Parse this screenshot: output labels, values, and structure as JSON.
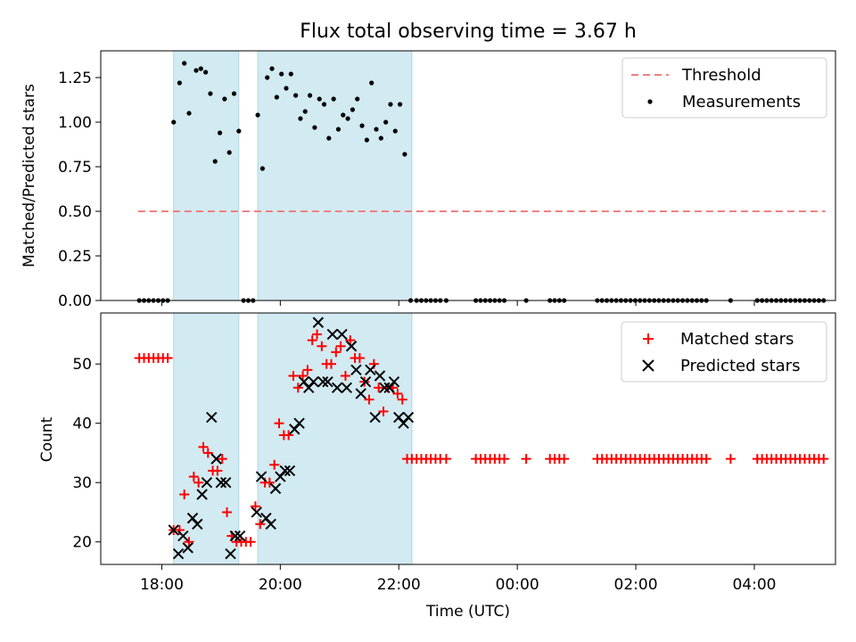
{
  "title": "Flux total observing time = 3.67 h",
  "colors": {
    "band": "#add8e6",
    "threshold": "#f08080",
    "matched": "#ff0000",
    "predicted": "#000000",
    "measurement": "#000000"
  },
  "chart_data": [
    {
      "type": "scatter",
      "panel": "top",
      "xlabel": "",
      "ylabel": "Matched/Predicted stars",
      "x_unit": "hours since 2024-01-01 00:00 UTC",
      "xlim": [
        16.97,
        29.37
      ],
      "ylim": [
        0.0,
        1.4
      ],
      "yticks": [
        0.0,
        0.25,
        0.5,
        0.75,
        1.0,
        1.25
      ],
      "ytick_labels": [
        "0.00",
        "0.25",
        "0.50",
        "0.75",
        "1.00",
        "1.25"
      ],
      "legend_position": "top-right",
      "shaded_intervals": [
        [
          18.2,
          19.3
        ],
        [
          19.62,
          22.22
        ]
      ],
      "threshold": {
        "name": "Threshold",
        "y": 0.5,
        "x": [
          17.6,
          29.2
        ],
        "style": "dashed"
      },
      "series": [
        {
          "name": "Measurements",
          "marker": "dot",
          "x": [
            17.62,
            17.7,
            17.78,
            17.86,
            17.94,
            18.02,
            18.1,
            18.2,
            18.3,
            18.38,
            18.46,
            18.58,
            18.66,
            18.74,
            18.82,
            18.9,
            18.98,
            19.06,
            19.14,
            19.22,
            19.3,
            19.38,
            19.46,
            19.54,
            19.62,
            19.7,
            19.78,
            19.86,
            19.94,
            20.02,
            20.1,
            20.18,
            20.26,
            20.34,
            20.42,
            20.5,
            20.58,
            20.66,
            20.74,
            20.82,
            20.9,
            20.98,
            21.06,
            21.14,
            21.22,
            21.3,
            21.38,
            21.46,
            21.54,
            21.62,
            21.7,
            21.78,
            21.86,
            21.94,
            22.02,
            22.1,
            22.2,
            22.3,
            22.38,
            22.46,
            22.54,
            22.62,
            22.7,
            22.8,
            23.3,
            23.38,
            23.46,
            23.54,
            23.62,
            23.7,
            23.78,
            24.15,
            24.55,
            24.63,
            24.71,
            24.79,
            25.35,
            25.43,
            25.51,
            25.59,
            25.67,
            25.75,
            25.83,
            25.91,
            25.99,
            26.07,
            26.15,
            26.23,
            26.31,
            26.39,
            26.47,
            26.55,
            26.63,
            26.71,
            26.79,
            26.87,
            26.95,
            27.03,
            27.11,
            27.19,
            27.6,
            28.05,
            28.13,
            28.21,
            28.29,
            28.37,
            28.45,
            28.53,
            28.61,
            28.69,
            28.77,
            28.85,
            28.93,
            29.01,
            29.09,
            29.17
          ],
          "y": [
            0,
            0,
            0,
            0,
            0,
            0,
            0,
            1.0,
            1.22,
            1.33,
            1.05,
            1.29,
            1.3,
            1.28,
            1.16,
            0.78,
            0.94,
            1.13,
            0.83,
            1.16,
            0.95,
            0,
            0,
            0,
            1.04,
            0.74,
            1.25,
            1.3,
            1.14,
            1.27,
            1.19,
            1.27,
            1.15,
            1.02,
            1.06,
            1.15,
            0.97,
            1.13,
            1.1,
            0.91,
            1.13,
            0.96,
            1.04,
            1.02,
            1.07,
            1.13,
            0.98,
            0.9,
            1.22,
            0.96,
            0.91,
            1.0,
            1.1,
            0.95,
            1.1,
            0.82,
            0,
            0,
            0,
            0,
            0,
            0,
            0,
            0,
            0,
            0,
            0,
            0,
            0,
            0,
            0,
            0,
            0,
            0,
            0,
            0,
            0,
            0,
            0,
            0,
            0,
            0,
            0,
            0,
            0,
            0,
            0,
            0,
            0,
            0,
            0,
            0,
            0,
            0,
            0,
            0,
            0,
            0,
            0,
            0,
            0,
            0,
            0,
            0,
            0,
            0,
            0,
            0,
            0,
            0,
            0,
            0,
            0,
            0,
            0,
            0
          ]
        }
      ]
    },
    {
      "type": "scatter",
      "panel": "bottom",
      "xlabel": "Time (UTC)",
      "ylabel": "Count",
      "x_unit": "hours since 2024-01-01 00:00 UTC",
      "xlim": [
        16.97,
        29.37
      ],
      "ylim": [
        16.2,
        58.6
      ],
      "yticks": [
        20,
        30,
        40,
        50
      ],
      "ytick_labels": [
        "20",
        "30",
        "40",
        "50"
      ],
      "xticks": [
        18,
        20,
        22,
        24,
        26,
        28
      ],
      "xtick_labels": [
        "18:00",
        "20:00",
        "22:00",
        "00:00",
        "02:00",
        "04:00"
      ],
      "legend_position": "top-right",
      "shaded_intervals": [
        [
          18.2,
          19.3
        ],
        [
          19.62,
          22.22
        ]
      ],
      "series": [
        {
          "name": "Matched stars",
          "marker": "plus",
          "x": [
            17.62,
            17.7,
            17.78,
            17.86,
            17.94,
            18.02,
            18.1,
            18.2,
            18.3,
            18.38,
            18.46,
            18.54,
            18.62,
            18.7,
            18.78,
            18.86,
            18.94,
            19.02,
            19.1,
            19.18,
            19.26,
            19.34,
            19.42,
            19.5,
            19.58,
            19.66,
            19.74,
            19.82,
            19.9,
            19.98,
            20.06,
            20.14,
            20.22,
            20.3,
            20.38,
            20.46,
            20.54,
            20.62,
            20.7,
            20.78,
            20.86,
            20.94,
            21.02,
            21.1,
            21.18,
            21.26,
            21.34,
            21.42,
            21.5,
            21.58,
            21.66,
            21.74,
            21.82,
            21.9,
            21.98,
            22.06,
            22.14,
            22.22,
            22.3,
            22.38,
            22.46,
            22.54,
            22.62,
            22.7,
            22.8,
            23.3,
            23.38,
            23.46,
            23.54,
            23.62,
            23.7,
            23.78,
            24.15,
            24.55,
            24.63,
            24.71,
            24.79,
            25.35,
            25.43,
            25.51,
            25.59,
            25.67,
            25.75,
            25.83,
            25.91,
            25.99,
            26.07,
            26.15,
            26.23,
            26.31,
            26.39,
            26.47,
            26.55,
            26.63,
            26.71,
            26.79,
            26.87,
            26.95,
            27.03,
            27.11,
            27.19,
            27.6,
            28.05,
            28.13,
            28.21,
            28.29,
            28.37,
            28.45,
            28.53,
            28.61,
            28.69,
            28.77,
            28.85,
            28.93,
            29.01,
            29.09,
            29.17
          ],
          "y": [
            51,
            51,
            51,
            51,
            51,
            51,
            51,
            22,
            22,
            28,
            20,
            31,
            30,
            36,
            35,
            32,
            32,
            34,
            25,
            21,
            20,
            20,
            20,
            20,
            26,
            23,
            30,
            30,
            33,
            40,
            38,
            38,
            48,
            46,
            48,
            49,
            54,
            55,
            53,
            50,
            50,
            52,
            53,
            48,
            54,
            51,
            51,
            47,
            44,
            50,
            46,
            42,
            46,
            46,
            45,
            44,
            34,
            34,
            34,
            34,
            34,
            34,
            34,
            34,
            34,
            34,
            34,
            34,
            34,
            34,
            34,
            34,
            34,
            34,
            34,
            34,
            34,
            34,
            34,
            34,
            34,
            34,
            34,
            34,
            34,
            34,
            34,
            34,
            34,
            34,
            34,
            34,
            34,
            34,
            34,
            34,
            34,
            34,
            34,
            34,
            34,
            34,
            34,
            34,
            34,
            34,
            34,
            34,
            34,
            34,
            34,
            34,
            34,
            34,
            34,
            34,
            34
          ]
        },
        {
          "name": "Predicted stars",
          "marker": "x",
          "x": [
            18.2,
            18.28,
            18.36,
            18.44,
            18.52,
            18.6,
            18.68,
            18.76,
            18.84,
            18.92,
            19.0,
            19.08,
            19.16,
            19.24,
            19.32,
            19.6,
            19.68,
            19.76,
            19.84,
            19.92,
            20.0,
            20.08,
            20.16,
            20.24,
            20.32,
            20.4,
            20.48,
            20.56,
            20.64,
            20.72,
            20.8,
            20.88,
            20.96,
            21.04,
            21.12,
            21.2,
            21.28,
            21.36,
            21.44,
            21.52,
            21.6,
            21.68,
            21.76,
            21.84,
            21.92,
            22.0,
            22.08,
            22.16
          ],
          "y": [
            22,
            18,
            21,
            19,
            24,
            23,
            28,
            30,
            41,
            34,
            30,
            30,
            18,
            21,
            21,
            25,
            31,
            24,
            23,
            29,
            31,
            32,
            32,
            39,
            40,
            47,
            46,
            47,
            57,
            47,
            47,
            55,
            46,
            55,
            46,
            53,
            49,
            45,
            47,
            49,
            41,
            48,
            46,
            46,
            47,
            41,
            40,
            41
          ]
        }
      ]
    }
  ]
}
